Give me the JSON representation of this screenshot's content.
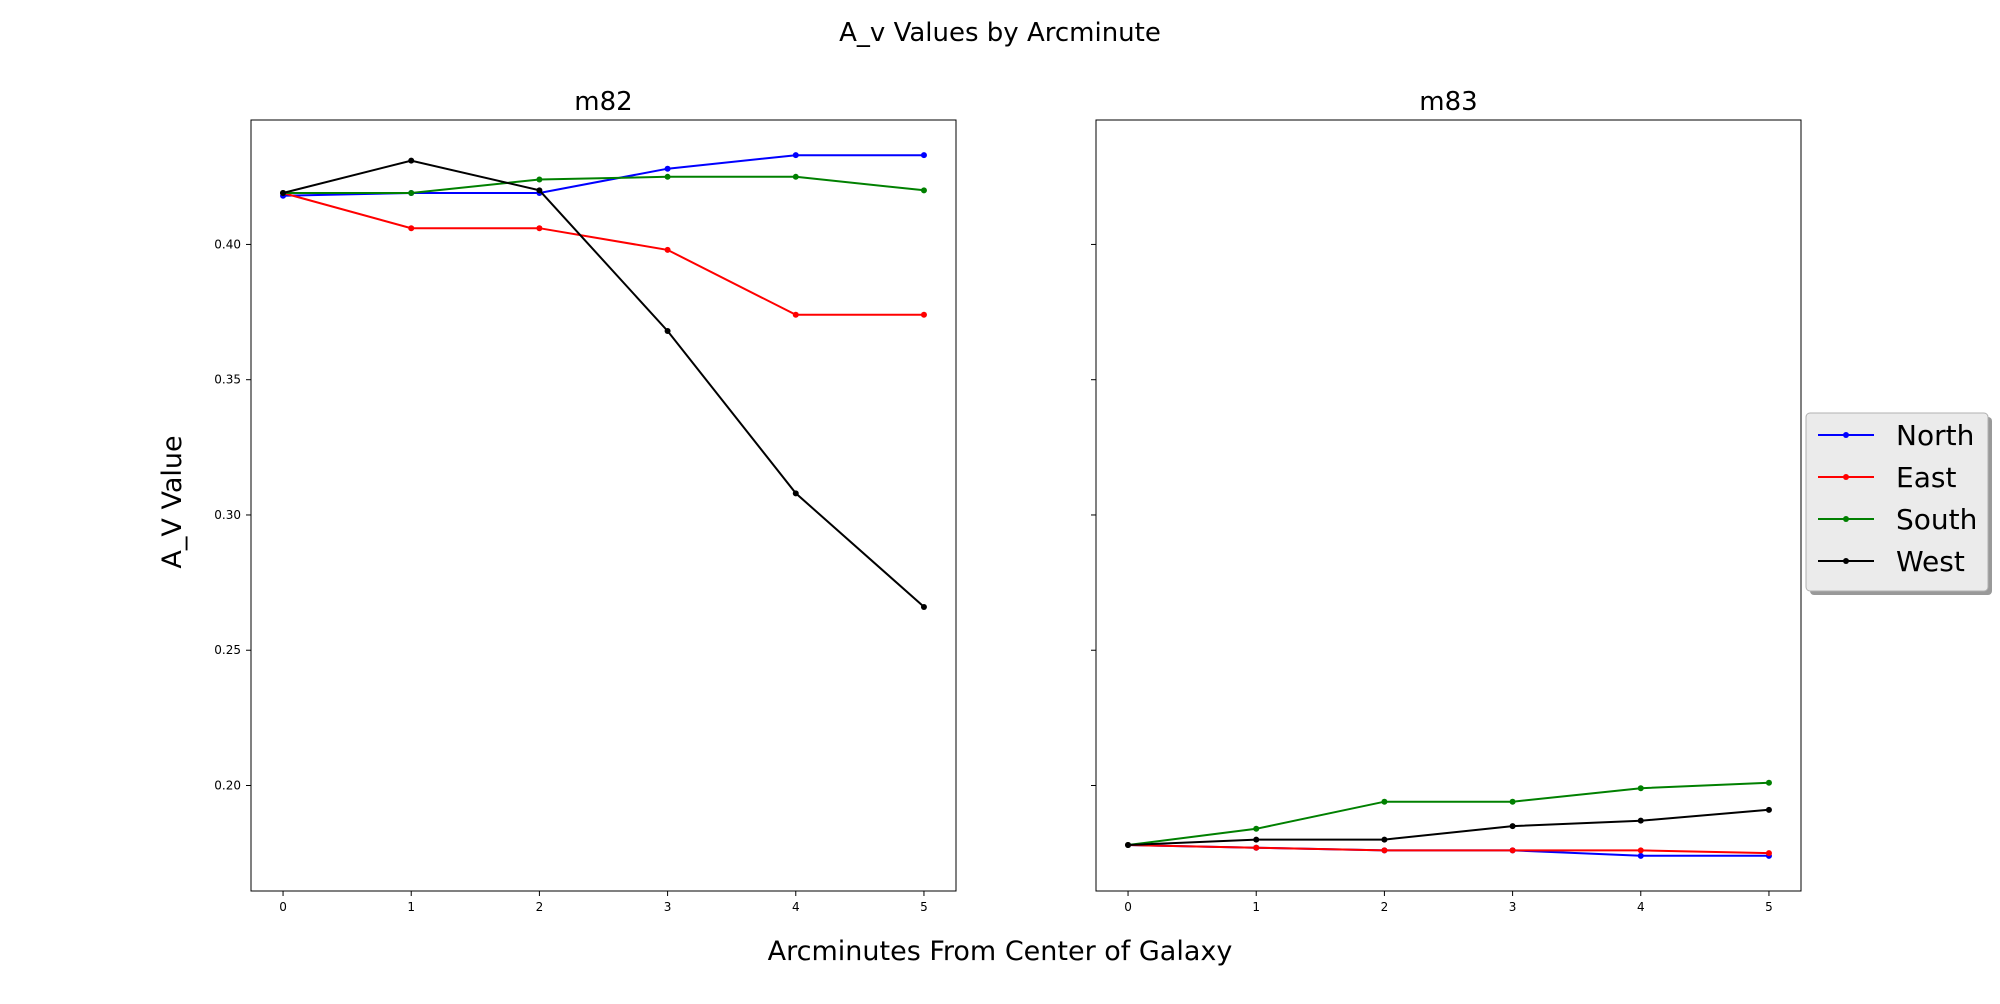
{
  "figure": {
    "title": "A_v Values by Arcminute",
    "xlabel": "Arcminutes From Center of Galaxy",
    "ylabel": "A_V Value"
  },
  "legend": {
    "placement": "right, outside plots",
    "entries": [
      {
        "name": "North",
        "color": "#0000ff"
      },
      {
        "name": "East",
        "color": "#ff0000"
      },
      {
        "name": "South",
        "color": "#008000"
      },
      {
        "name": "West",
        "color": "#000000"
      }
    ]
  },
  "chart_data": [
    {
      "type": "line",
      "title": "m82",
      "x": [
        0,
        1,
        2,
        3,
        4,
        5
      ],
      "xticks": [
        "0",
        "1",
        "2",
        "3",
        "4",
        "5"
      ],
      "yticks": [
        "0.20",
        "0.25",
        "0.30",
        "0.35",
        "0.40"
      ],
      "ylim": [
        0.161,
        0.446
      ],
      "shared_y": true,
      "grid": false,
      "series": [
        {
          "name": "North",
          "color": "#0000ff",
          "values": [
            0.418,
            0.419,
            0.419,
            0.428,
            0.433,
            0.433
          ]
        },
        {
          "name": "East",
          "color": "#ff0000",
          "values": [
            0.419,
            0.406,
            0.406,
            0.398,
            0.374,
            0.374
          ]
        },
        {
          "name": "South",
          "color": "#008000",
          "values": [
            0.419,
            0.419,
            0.424,
            0.425,
            0.425,
            0.42
          ]
        },
        {
          "name": "West",
          "color": "#000000",
          "values": [
            0.419,
            0.431,
            0.42,
            0.368,
            0.308,
            0.266
          ]
        }
      ]
    },
    {
      "type": "line",
      "title": "m83",
      "x": [
        0,
        1,
        2,
        3,
        4,
        5
      ],
      "xticks": [
        "0",
        "1",
        "2",
        "3",
        "4",
        "5"
      ],
      "yticks": [],
      "ylim": [
        0.161,
        0.446
      ],
      "shared_y": true,
      "grid": false,
      "series": [
        {
          "name": "North",
          "color": "#0000ff",
          "values": [
            0.178,
            0.177,
            0.176,
            0.176,
            0.174,
            0.174
          ]
        },
        {
          "name": "East",
          "color": "#ff0000",
          "values": [
            0.178,
            0.177,
            0.176,
            0.176,
            0.176,
            0.175
          ]
        },
        {
          "name": "South",
          "color": "#008000",
          "values": [
            0.178,
            0.184,
            0.194,
            0.194,
            0.199,
            0.201
          ]
        },
        {
          "name": "West",
          "color": "#000000",
          "values": [
            0.178,
            0.18,
            0.18,
            0.185,
            0.187,
            0.191
          ]
        }
      ]
    }
  ]
}
